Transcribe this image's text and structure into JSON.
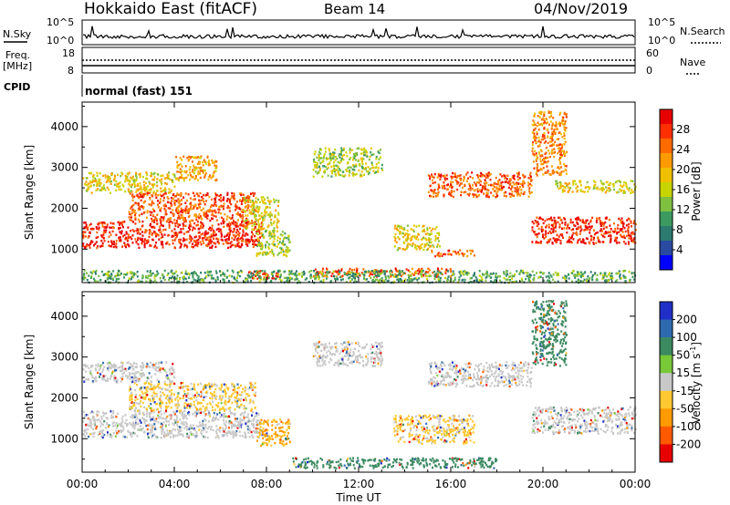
{
  "header": {
    "title": "Hokkaido East (fitACF)",
    "beam": "Beam 14",
    "date": "04/Nov/2019"
  },
  "strips": {
    "nsky_label": "N.Sky",
    "nsky_ticks": [
      "10^5",
      "10^0"
    ],
    "nsearch_label": "N.Search",
    "nsearch_ticks": [
      "10^5",
      "10^0"
    ],
    "freq_label": "Freq.",
    "freq_unit": "[MHz]",
    "freq_ticks": [
      "18",
      "8"
    ],
    "nave_label": "Nave",
    "nave_ticks": [
      "60",
      "0"
    ],
    "cpid_label": "CPID",
    "cpid_text": "normal (fast) 151"
  },
  "axes": {
    "x_ticks": [
      "00:00",
      "04:00",
      "08:00",
      "12:00",
      "16:00",
      "20:00",
      "00:00"
    ],
    "x_label": "Time UT",
    "y_ticks": [
      "1000",
      "2000",
      "3000",
      "4000"
    ],
    "y_label": "Slant Range [km]"
  },
  "power_colorbar": {
    "label": "Power [dB]",
    "ticks": [
      "28",
      "24",
      "20",
      "16",
      "12",
      "8",
      "4"
    ],
    "colors": [
      "#e80000",
      "#ff3000",
      "#ff6a00",
      "#ff9a00",
      "#f0c000",
      "#c8d400",
      "#80c040",
      "#3c9a60",
      "#2c7a70",
      "#2a4aa0",
      "#0000ff"
    ]
  },
  "velocity_colorbar": {
    "label": "Velocity [m s",
    "label_sup": "-1",
    "label_end": "]",
    "ticks": [
      "200",
      "100",
      "50",
      "15",
      "-15",
      "-50",
      "-100",
      "-200"
    ],
    "colors": [
      "#1f2fc8",
      "#2f6ab0",
      "#3c8a60",
      "#78c838",
      "#c8c8c8",
      "#ffc830",
      "#ff9a00",
      "#ff5a00",
      "#e80000"
    ]
  },
  "chart_data": [
    {
      "type": "heatmap",
      "title": "Power",
      "x_unit": "hours UT",
      "xlim": [
        0,
        24
      ],
      "y_unit": "km",
      "ylim": [
        180,
        4600
      ],
      "regions": [
        {
          "t0": 0.0,
          "t1": 7.8,
          "r0": 1050,
          "r1": 1700,
          "dB": 28
        },
        {
          "t0": 0.0,
          "t1": 4.0,
          "r0": 2400,
          "r1": 2900,
          "dB": 17
        },
        {
          "t0": 2.0,
          "t1": 7.5,
          "r0": 1700,
          "r1": 2400,
          "dB": 25
        },
        {
          "t0": 4.0,
          "t1": 5.8,
          "r0": 2700,
          "r1": 3300,
          "dB": 20
        },
        {
          "t0": 7.0,
          "t1": 8.5,
          "r0": 1500,
          "r1": 2300,
          "dB": 16
        },
        {
          "t0": 7.5,
          "t1": 9.0,
          "r0": 850,
          "r1": 1500,
          "dB": 14
        },
        {
          "t0": 7.0,
          "t1": 8.5,
          "r0": 300,
          "r1": 500,
          "dB": 28
        },
        {
          "t0": 10.0,
          "t1": 13.0,
          "r0": 2800,
          "r1": 3500,
          "dB": 14
        },
        {
          "t0": 13.5,
          "t1": 15.5,
          "r0": 1000,
          "r1": 1600,
          "dB": 17
        },
        {
          "t0": 15.0,
          "t1": 17.0,
          "r0": 850,
          "r1": 1000,
          "dB": 26
        },
        {
          "t0": 10.0,
          "t1": 16.0,
          "r0": 350,
          "r1": 550,
          "dB": 26
        },
        {
          "t0": 15.0,
          "t1": 19.5,
          "r0": 2300,
          "r1": 2900,
          "dB": 25
        },
        {
          "t0": 19.5,
          "t1": 24.0,
          "r0": 1150,
          "r1": 1800,
          "dB": 28
        },
        {
          "t0": 20.5,
          "t1": 24.0,
          "r0": 2400,
          "r1": 2700,
          "dB": 16
        },
        {
          "t0": 19.5,
          "t1": 21.0,
          "r0": 2800,
          "r1": 4400,
          "dB": 22
        },
        {
          "t0": 0.0,
          "t1": 24.0,
          "r0": 200,
          "r1": 500,
          "dB": 10
        }
      ]
    },
    {
      "type": "heatmap",
      "title": "Velocity",
      "x_unit": "hours UT",
      "xlim": [
        0,
        24
      ],
      "y_unit": "km",
      "ylim": [
        180,
        4600
      ],
      "regions": [
        {
          "t0": 0.0,
          "t1": 7.8,
          "r0": 1050,
          "r1": 1700,
          "vel": 0
        },
        {
          "t0": 2.0,
          "t1": 7.5,
          "r0": 1700,
          "r1": 2400,
          "vel": -20
        },
        {
          "t0": 0.0,
          "t1": 4.0,
          "r0": 2400,
          "r1": 2900,
          "vel": 0
        },
        {
          "t0": 7.5,
          "t1": 9.0,
          "r0": 850,
          "r1": 1500,
          "vel": -30
        },
        {
          "t0": 9.0,
          "t1": 18.0,
          "r0": 300,
          "r1": 550,
          "vel": 40
        },
        {
          "t0": 10.0,
          "t1": 13.0,
          "r0": 2800,
          "r1": 3400,
          "vel": 0
        },
        {
          "t0": 13.5,
          "t1": 17.0,
          "r0": 900,
          "r1": 1600,
          "vel": -20
        },
        {
          "t0": 15.0,
          "t1": 19.5,
          "r0": 2300,
          "r1": 2900,
          "vel": 0
        },
        {
          "t0": 19.5,
          "t1": 24.0,
          "r0": 1150,
          "r1": 1800,
          "vel": 0
        },
        {
          "t0": 19.5,
          "t1": 21.0,
          "r0": 2800,
          "r1": 4400,
          "vel": 50
        }
      ]
    }
  ]
}
